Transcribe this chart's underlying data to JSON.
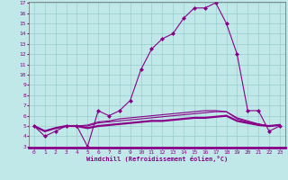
{
  "xlabel": "Windchill (Refroidissement éolien,°C)",
  "bg_color": "#c0e8e8",
  "grid_color": "#98cccc",
  "line_color": "#880088",
  "x_ticks": [
    0,
    1,
    2,
    3,
    4,
    5,
    6,
    7,
    8,
    9,
    10,
    11,
    12,
    13,
    14,
    15,
    16,
    17,
    18,
    19,
    20,
    21,
    22,
    23
  ],
  "y_ticks": [
    3,
    4,
    5,
    6,
    7,
    8,
    9,
    10,
    11,
    12,
    13,
    14,
    15,
    16,
    17
  ],
  "ylim": [
    3,
    17
  ],
  "xlim": [
    -0.5,
    23.5
  ],
  "lines": [
    {
      "x": [
        0,
        1,
        2,
        3,
        4,
        5,
        6,
        7,
        8,
        9,
        10,
        11,
        12,
        13,
        14,
        15,
        16,
        17,
        18,
        19,
        20,
        21,
        22,
        23
      ],
      "y": [
        5.0,
        4.0,
        4.5,
        5.0,
        5.0,
        3.0,
        6.5,
        6.0,
        6.5,
        7.5,
        10.5,
        12.5,
        13.5,
        14.0,
        15.5,
        16.5,
        16.5,
        17.0,
        15.0,
        12.0,
        6.5,
        6.5,
        4.5,
        5.0
      ],
      "marker": "D",
      "markersize": 2.0,
      "linewidth": 0.8
    },
    {
      "x": [
        0,
        1,
        2,
        3,
        4,
        5,
        6,
        7,
        8,
        9,
        10,
        11,
        12,
        13,
        14,
        15,
        16,
        17,
        18,
        19,
        20,
        21,
        22,
        23
      ],
      "y": [
        5.0,
        4.5,
        4.8,
        5.0,
        5.0,
        4.8,
        5.0,
        5.1,
        5.2,
        5.3,
        5.4,
        5.5,
        5.5,
        5.6,
        5.7,
        5.8,
        5.8,
        5.9,
        6.0,
        5.5,
        5.3,
        5.1,
        5.0,
        5.1
      ],
      "marker": null,
      "markersize": 0,
      "linewidth": 1.6
    },
    {
      "x": [
        0,
        1,
        2,
        3,
        4,
        5,
        6,
        7,
        8,
        9,
        10,
        11,
        12,
        13,
        14,
        15,
        16,
        17,
        18,
        19,
        20,
        21,
        22,
        23
      ],
      "y": [
        5.0,
        4.5,
        4.8,
        5.0,
        5.0,
        5.0,
        5.3,
        5.4,
        5.5,
        5.6,
        5.7,
        5.8,
        5.9,
        6.0,
        6.1,
        6.2,
        6.3,
        6.4,
        6.4,
        5.7,
        5.4,
        5.2,
        5.0,
        5.1
      ],
      "marker": null,
      "markersize": 0,
      "linewidth": 0.8
    },
    {
      "x": [
        0,
        1,
        2,
        3,
        4,
        5,
        6,
        7,
        8,
        9,
        10,
        11,
        12,
        13,
        14,
        15,
        16,
        17,
        18,
        19,
        20,
        21,
        22,
        23
      ],
      "y": [
        5.0,
        4.5,
        4.8,
        5.0,
        5.0,
        5.1,
        5.4,
        5.5,
        5.7,
        5.8,
        5.9,
        6.0,
        6.1,
        6.2,
        6.3,
        6.4,
        6.5,
        6.5,
        6.4,
        5.8,
        5.5,
        5.2,
        5.0,
        5.1
      ],
      "marker": null,
      "markersize": 0,
      "linewidth": 0.8
    }
  ]
}
